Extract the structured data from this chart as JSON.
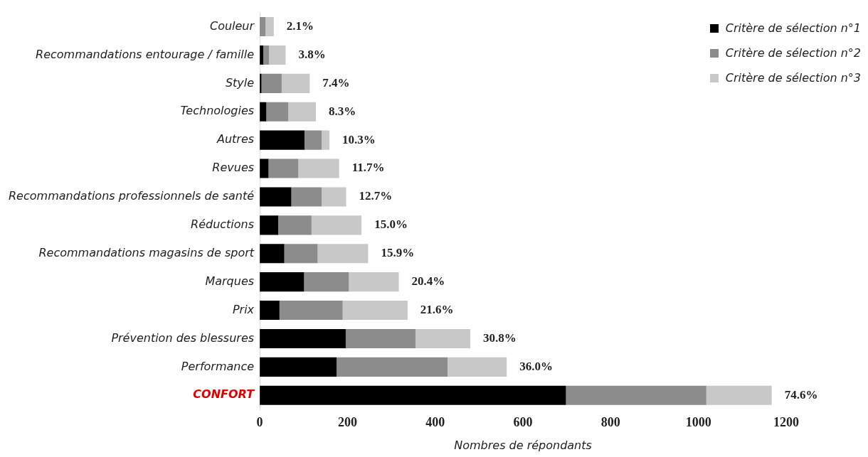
{
  "chart_data": {
    "type": "bar",
    "orientation": "horizontal",
    "stacked": true,
    "xlabel": "Nombres de répondants",
    "categories": [
      "Couleur",
      "Recommandations entourage / famille",
      "Style",
      "Technologies",
      "Autres",
      "Revues",
      "Recommandations professionnels de santé",
      "Réductions",
      "Recommandations magasins de sport",
      "Marques",
      "Prix",
      "Prévention des blessures",
      "Performance",
      "CONFORT"
    ],
    "series": [
      {
        "name": "Critère de sélection n°1",
        "color": "#000000",
        "values": [
          0,
          8,
          4,
          15,
          102,
          20,
          72,
          42,
          56,
          101,
          45,
          196,
          175,
          698
        ]
      },
      {
        "name": "Critère de sélection n°2",
        "color": "#8c8c8c",
        "values": [
          13,
          13,
          46,
          50,
          39,
          68,
          69,
          76,
          76,
          102,
          144,
          159,
          253,
          320
        ]
      },
      {
        "name": "Critère de sélection n°3",
        "color": "#c8c8c8",
        "values": [
          19,
          38,
          64,
          63,
          18,
          93,
          56,
          114,
          115,
          114,
          148,
          125,
          135,
          149
        ]
      }
    ],
    "annotations": [
      {
        "text": "2.1%",
        "x": 32,
        "y": "Couleur"
      },
      {
        "text": "3.8%",
        "x": 59,
        "y": "Recommandations entourage / famille"
      },
      {
        "text": "7.4%",
        "x": 114,
        "y": "Style"
      },
      {
        "text": "8.3%",
        "x": 128,
        "y": "Technologies"
      },
      {
        "text": "10.3%",
        "x": 159,
        "y": "Autres"
      },
      {
        "text": "11.7%",
        "x": 181,
        "y": "Revues"
      },
      {
        "text": "12.7%",
        "x": 197,
        "y": "Recommandations professionnels de santé"
      },
      {
        "text": "15.0%",
        "x": 232,
        "y": "Réductions"
      },
      {
        "text": "15.9%",
        "x": 247,
        "y": "Recommandations magasins de sport"
      },
      {
        "text": "20.4%",
        "x": 317,
        "y": "Marques"
      },
      {
        "text": "21.6%",
        "x": 337,
        "y": "Prix"
      },
      {
        "text": "30.8%",
        "x": 480,
        "y": "Prévention des blessures"
      },
      {
        "text": "36.0%",
        "x": 563,
        "y": "Performance"
      },
      {
        "text": "74.6%",
        "x": 1167,
        "y": "CONFORT"
      }
    ],
    "xlim": [
      0,
      1200
    ],
    "xticks": [
      0,
      200,
      400,
      600,
      800,
      1000,
      1200
    ],
    "grid": false,
    "legend": "top right"
  }
}
